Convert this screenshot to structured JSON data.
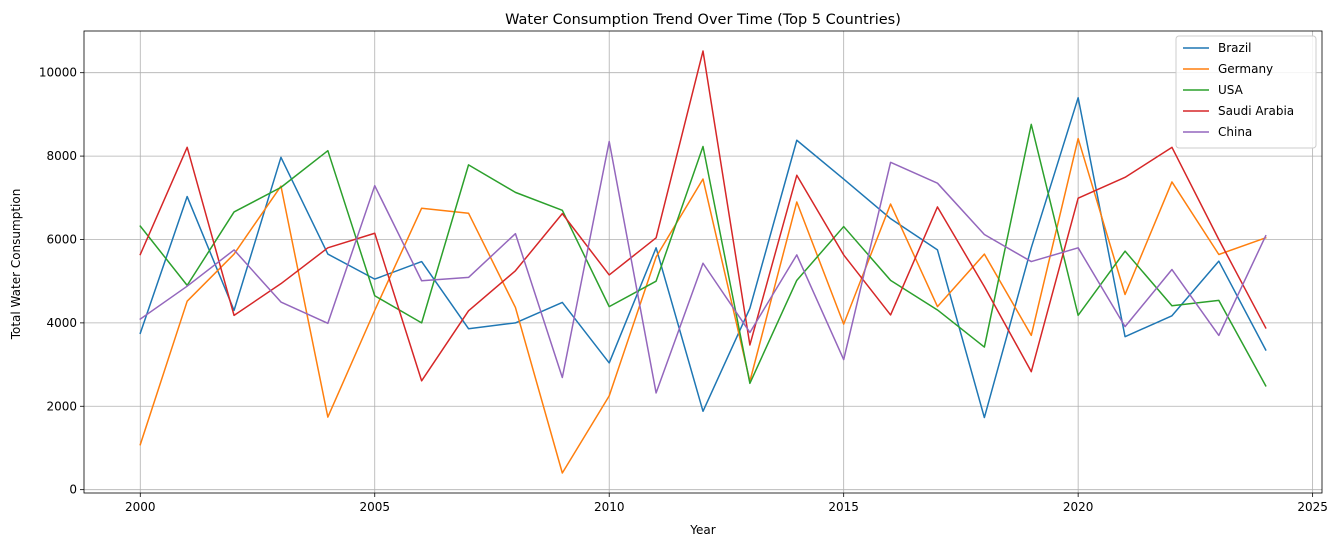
{
  "chart_data": {
    "type": "line",
    "title": "Water Consumption Trend Over Time (Top 5 Countries)",
    "xlabel": "Year",
    "ylabel": "Total Water Consumption",
    "xlim": [
      1998.8,
      2025.2
    ],
    "ylim": [
      -80,
      11000
    ],
    "xticks": [
      2000,
      2005,
      2010,
      2015,
      2020,
      2025
    ],
    "yticks": [
      0,
      2000,
      4000,
      6000,
      8000,
      10000
    ],
    "grid": true,
    "legend_position": "top-right",
    "x": [
      2000,
      2001,
      2002,
      2003,
      2004,
      2005,
      2006,
      2007,
      2008,
      2009,
      2010,
      2011,
      2012,
      2013,
      2014,
      2015,
      2016,
      2017,
      2018,
      2019,
      2020,
      2021,
      2022,
      2023,
      2024
    ],
    "series": [
      {
        "name": "Brazil",
        "color": "#1f77b4",
        "values": [
          3750,
          7030,
          4300,
          7970,
          5650,
          5050,
          5470,
          3860,
          4000,
          4490,
          3040,
          5800,
          1880,
          4350,
          8380,
          7450,
          6500,
          5750,
          1730,
          5800,
          9400,
          3670,
          4170,
          5480,
          3350
        ]
      },
      {
        "name": "Germany",
        "color": "#ff7f0e",
        "values": [
          1080,
          4520,
          5650,
          7280,
          1740,
          4300,
          6750,
          6630,
          4370,
          400,
          2250,
          5580,
          7450,
          2600,
          6900,
          3970,
          6850,
          4390,
          5650,
          3700,
          8420,
          4680,
          7380,
          5640,
          6040
        ]
      },
      {
        "name": "USA",
        "color": "#2ca02c",
        "values": [
          6320,
          4900,
          6660,
          7250,
          8130,
          4650,
          4000,
          7790,
          7130,
          6700,
          4390,
          5000,
          8230,
          2550,
          5020,
          6310,
          5020,
          4310,
          3420,
          8760,
          4180,
          5720,
          4410,
          4540,
          2490
        ]
      },
      {
        "name": "Saudi Arabia",
        "color": "#d62728",
        "values": [
          5640,
          8210,
          4180,
          4940,
          5800,
          6150,
          2610,
          4290,
          5250,
          6620,
          5150,
          6040,
          10520,
          3470,
          7540,
          5630,
          4190,
          6780,
          4870,
          2830,
          6990,
          7490,
          8210,
          6000,
          3880
        ]
      },
      {
        "name": "China",
        "color": "#9467bd",
        "values": [
          4090,
          4880,
          5750,
          4500,
          3990,
          7290,
          5010,
          5090,
          6140,
          2690,
          8350,
          2320,
          5430,
          3770,
          5630,
          3120,
          7850,
          7350,
          6120,
          5470,
          5800,
          3910,
          5280,
          3700,
          6090
        ]
      }
    ]
  }
}
